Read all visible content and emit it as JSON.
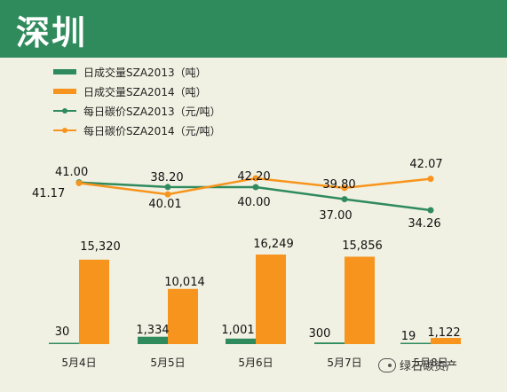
{
  "title": "深圳",
  "chart_data": {
    "type": "bar+line",
    "categories": [
      "5月4日",
      "5月5日",
      "5月6日",
      "5月7日",
      "5月8日"
    ],
    "series": [
      {
        "name": "日成交量SZA2013（吨）",
        "kind": "bar",
        "color": "#2f8a5c",
        "values": [
          30,
          1334,
          1001,
          300,
          19
        ],
        "labels": [
          "30",
          "1,334",
          "1,001",
          "300",
          "19"
        ]
      },
      {
        "name": "日成交量SZA2014（吨）",
        "kind": "bar",
        "color": "#f7941d",
        "values": [
          15320,
          10014,
          16249,
          15856,
          1122
        ],
        "labels": [
          "15,320",
          "10,014",
          "16,249",
          "15,856",
          "1,122"
        ]
      },
      {
        "name": "每日碳价SZA2013（元/吨）",
        "kind": "line",
        "color": "#2f8a5c",
        "values": [
          41.17,
          40.01,
          40.0,
          37.0,
          34.26
        ],
        "labels": [
          "41.17",
          "40.01",
          "40.00",
          "37.00",
          "34.26"
        ]
      },
      {
        "name": "每日碳价SZA2014（元/吨）",
        "kind": "line",
        "color": "#f7941d",
        "values": [
          41.0,
          38.2,
          42.2,
          39.8,
          42.07
        ],
        "labels": [
          "41.00",
          "38.20",
          "42.20",
          "39.80",
          "42.07"
        ]
      }
    ],
    "bar_ylim": [
      0,
      16249
    ],
    "line_ylim": [
      34.26,
      42.2
    ],
    "grid": false,
    "legend_position": "top-left"
  },
  "watermark": "绿石碳资产"
}
